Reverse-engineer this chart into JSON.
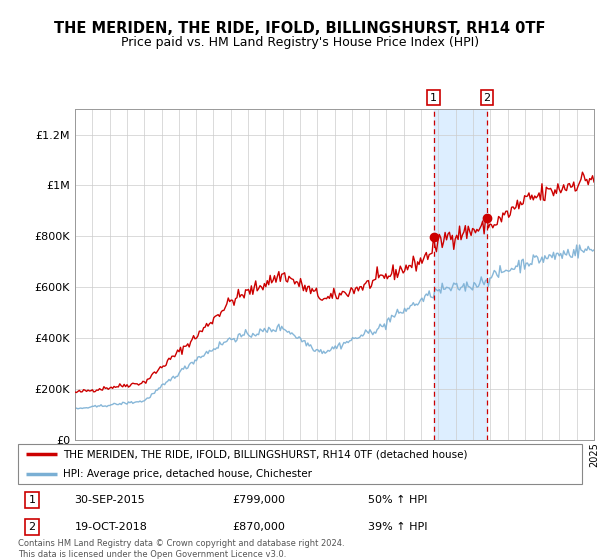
{
  "title": "THE MERIDEN, THE RIDE, IFOLD, BILLINGSHURST, RH14 0TF",
  "subtitle": "Price paid vs. HM Land Registry's House Price Index (HPI)",
  "ylim": [
    0,
    1300000
  ],
  "yticks": [
    0,
    200000,
    400000,
    600000,
    800000,
    1000000,
    1200000
  ],
  "ytick_labels": [
    "£0",
    "£200K",
    "£400K",
    "£600K",
    "£800K",
    "£1M",
    "£1.2M"
  ],
  "red_line_color": "#cc0000",
  "blue_line_color": "#7aafd4",
  "shade_color": "#ddeeff",
  "legend_red": "THE MERIDEN, THE RIDE, IFOLD, BILLINGSHURST, RH14 0TF (detached house)",
  "legend_blue": "HPI: Average price, detached house, Chichester",
  "footer": "Contains HM Land Registry data © Crown copyright and database right 2024.\nThis data is licensed under the Open Government Licence v3.0.",
  "ann1_date": "30-SEP-2015",
  "ann1_price": "£799,000",
  "ann1_pct": "50% ↑ HPI",
  "ann1_year": 2015.75,
  "ann1_value": 799000,
  "ann2_date": "19-OCT-2018",
  "ann2_price": "£870,000",
  "ann2_pct": "39% ↑ HPI",
  "ann2_year": 2018.8,
  "ann2_value": 870000
}
